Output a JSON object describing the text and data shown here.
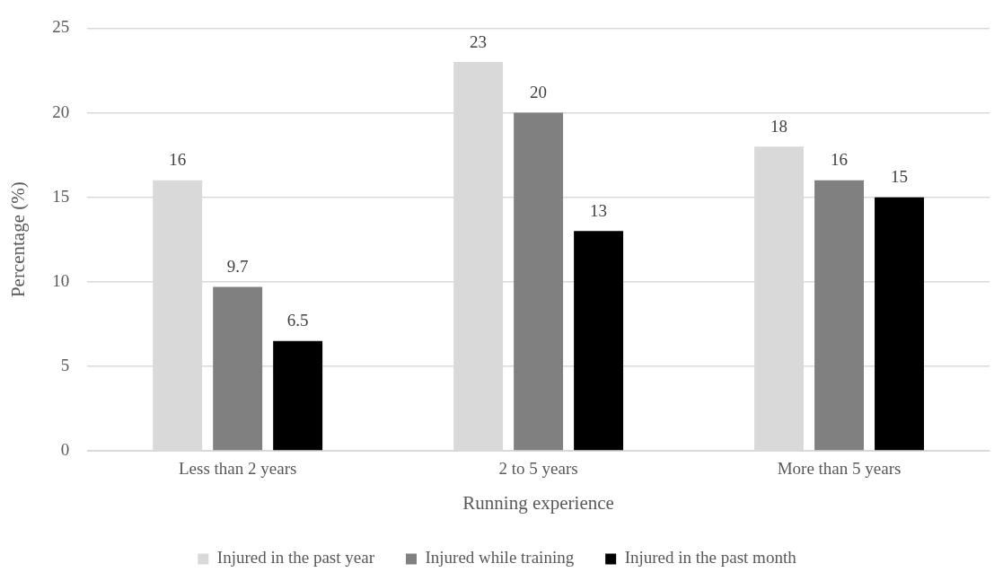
{
  "chart_data": {
    "type": "bar",
    "xlabel": "Running experience",
    "ylabel": "Percentage (%)",
    "categories": [
      "Less than 2 years",
      "2 to 5 years",
      "More than 5 years"
    ],
    "series": [
      {
        "name": "Injured in the past year",
        "color": "#d9d9d9",
        "values": [
          16,
          23,
          18
        ]
      },
      {
        "name": "Injured while training",
        "color": "#808080",
        "values": [
          9.7,
          20,
          16
        ]
      },
      {
        "name": "Injured in the past month",
        "color": "#000000",
        "values": [
          6.5,
          13,
          15
        ]
      }
    ],
    "ylim": [
      0,
      25
    ],
    "yticks": [
      0,
      5,
      10,
      15,
      20,
      25
    ],
    "grid": "y",
    "legend": "bottom",
    "data_labels": true
  }
}
